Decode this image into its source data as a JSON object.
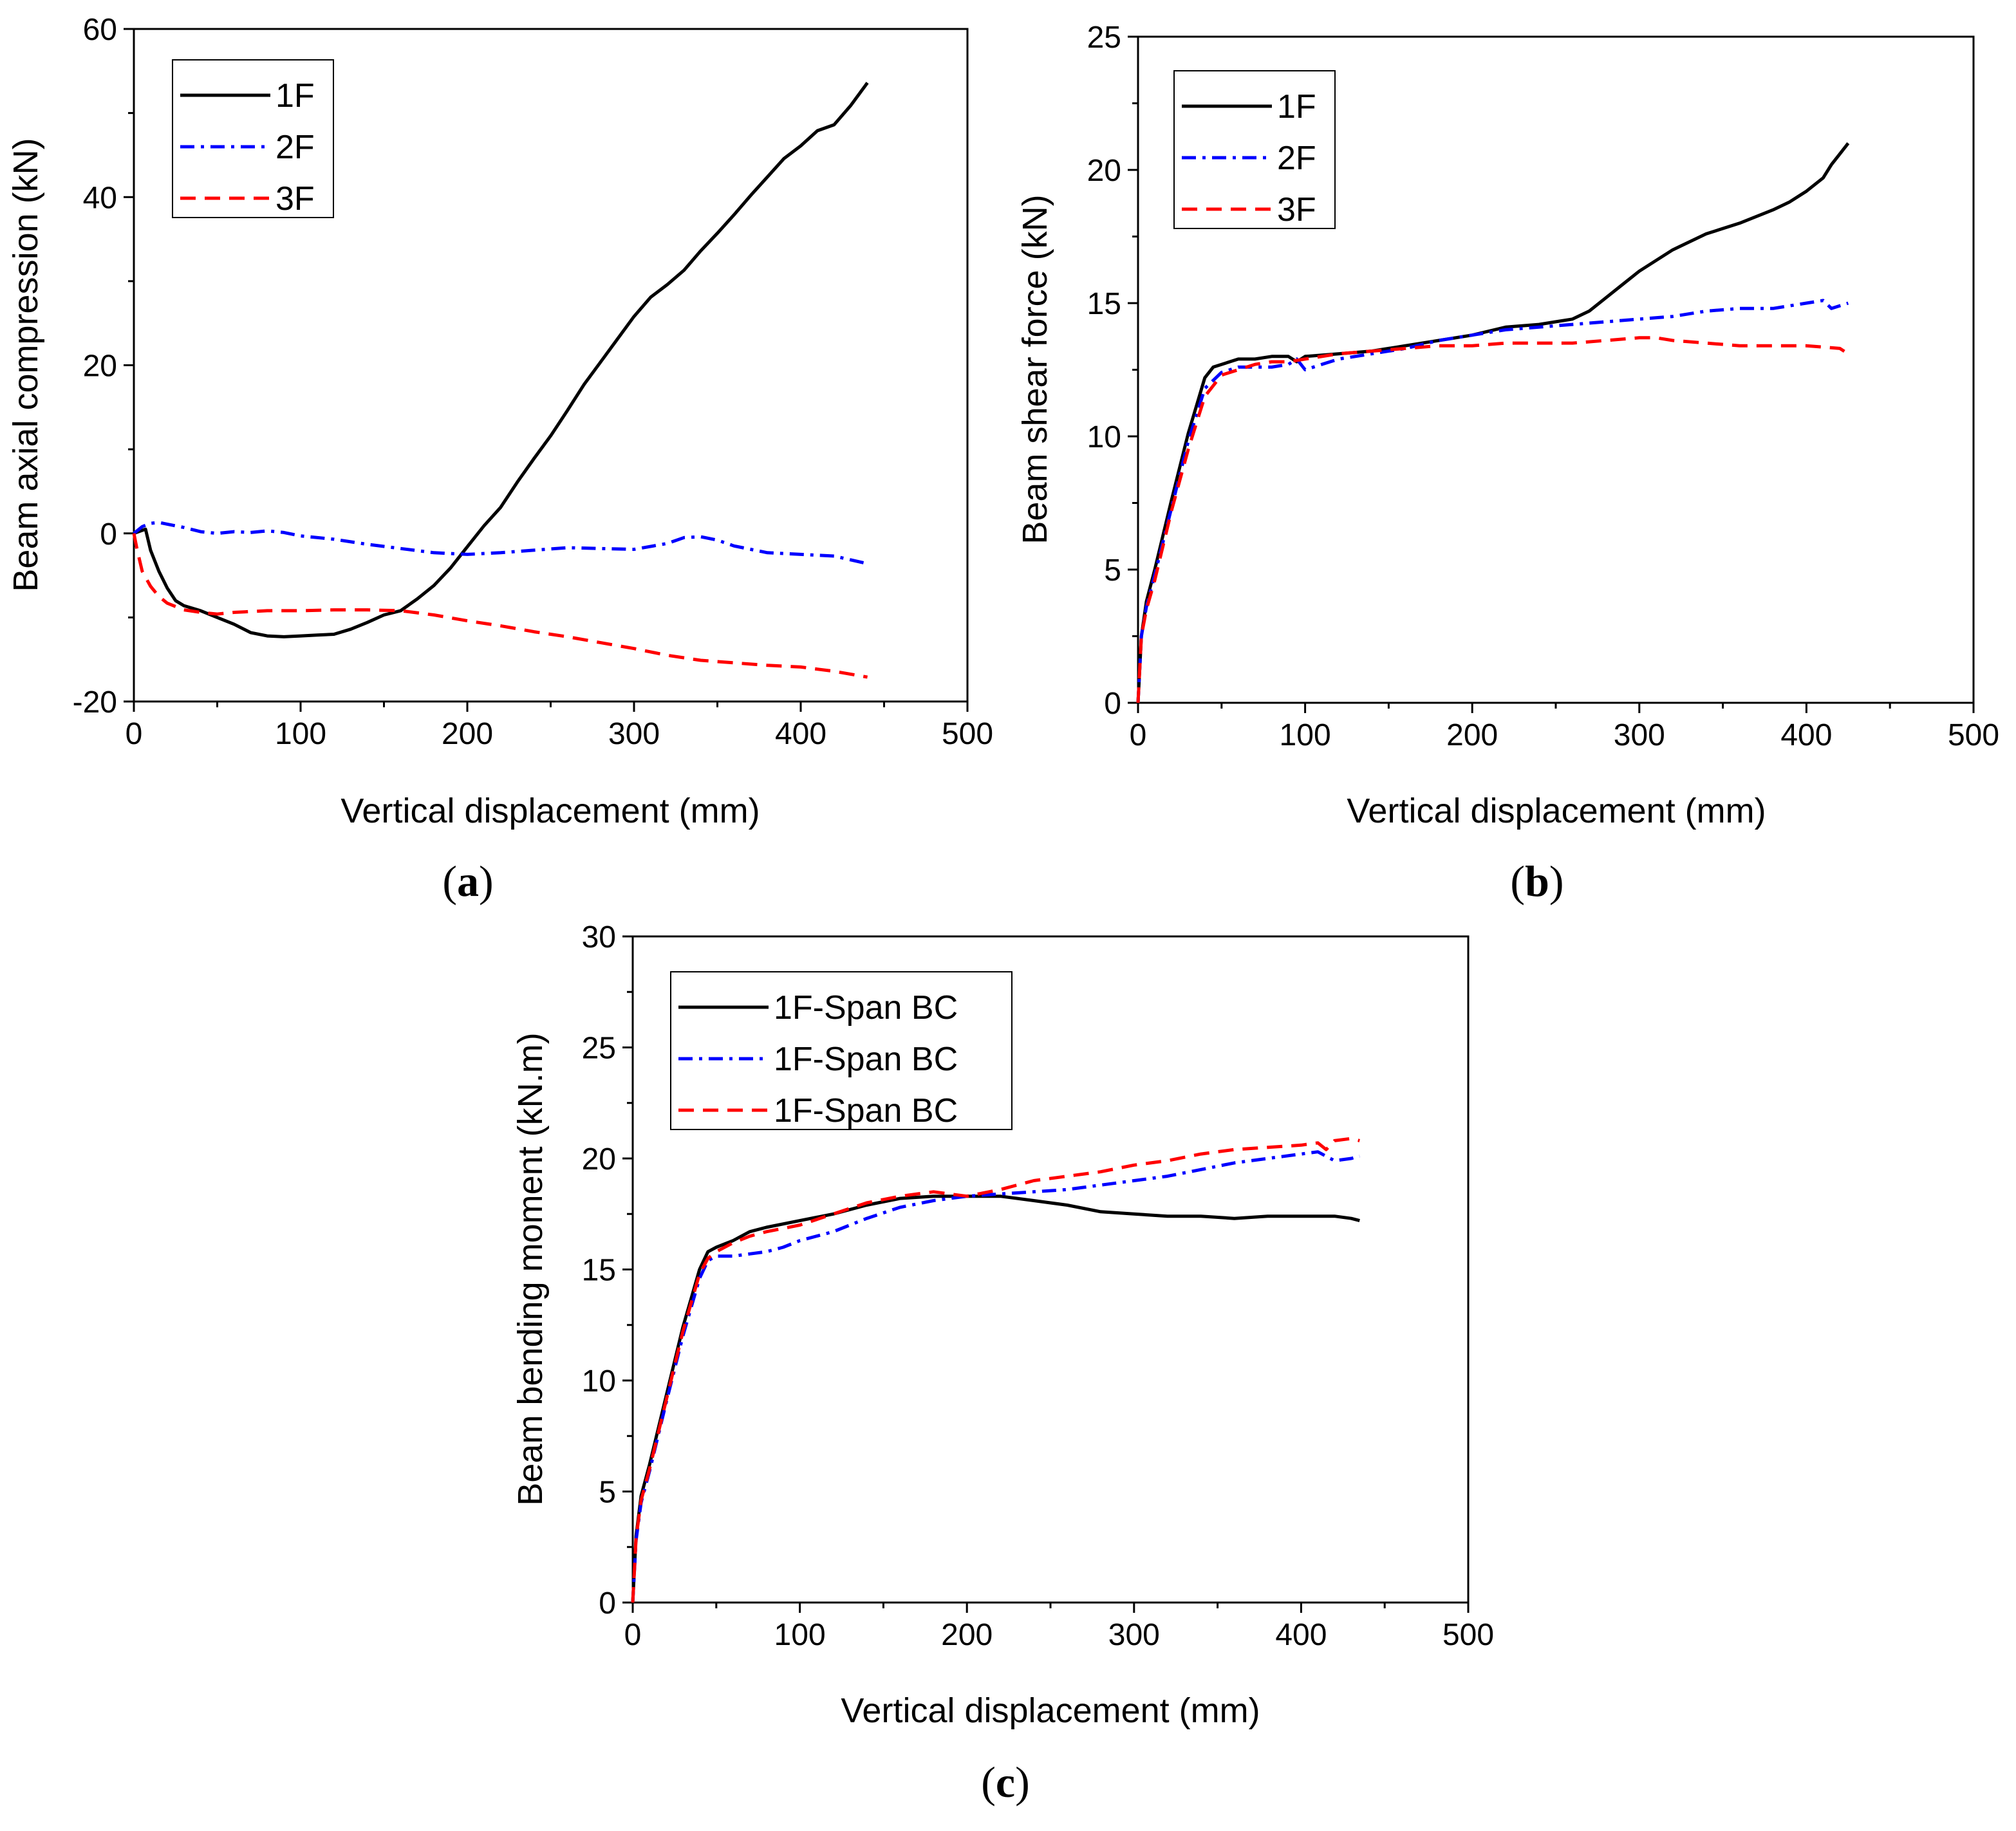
{
  "chart_data": [
    {
      "id": "a",
      "type": "line",
      "panel_label": "a",
      "xlabel": "Vertical displacement (mm)",
      "ylabel": "Beam axial compression (kN)",
      "xlim": [
        0,
        500
      ],
      "ylim": [
        -20,
        60
      ],
      "xticks": [
        0,
        100,
        200,
        300,
        400,
        500
      ],
      "yticks": [
        -20,
        0,
        20,
        40,
        60
      ],
      "legend_position": "top-left",
      "series": [
        {
          "name": "1F",
          "color": "#000000",
          "style": "solid",
          "x": [
            0,
            7,
            10,
            15,
            20,
            25,
            30,
            40,
            50,
            60,
            70,
            80,
            90,
            100,
            110,
            120,
            130,
            140,
            150,
            160,
            170,
            180,
            190,
            200,
            210,
            220,
            230,
            240,
            250,
            260,
            270,
            280,
            290,
            300,
            310,
            320,
            330,
            340,
            350,
            360,
            370,
            380,
            390,
            400,
            410,
            420,
            430,
            440
          ],
          "y": [
            0,
            0.5,
            -2,
            -4.5,
            -6.5,
            -8,
            -8.6,
            -9.2,
            -10,
            -10.8,
            -11.8,
            -12.2,
            -12.3,
            -12.2,
            -12.1,
            -12,
            -11.4,
            -10.6,
            -9.7,
            -9.2,
            -7.8,
            -6.2,
            -4.1,
            -1.6,
            0.9,
            3.1,
            6.1,
            8.9,
            11.6,
            14.6,
            17.7,
            20.4,
            23.1,
            25.8,
            28.1,
            29.6,
            31.3,
            33.6,
            35.7,
            37.9,
            40.2,
            42.4,
            44.6,
            46.1,
            47.9,
            48.6,
            50.9,
            53.6
          ]
        },
        {
          "name": "2F",
          "color": "#0000ff",
          "style": "dash-dot",
          "x": [
            0,
            5,
            10,
            15,
            20,
            30,
            40,
            50,
            60,
            70,
            80,
            90,
            100,
            120,
            140,
            160,
            180,
            200,
            220,
            240,
            260,
            280,
            300,
            320,
            330,
            340,
            350,
            360,
            380,
            400,
            420,
            440
          ],
          "y": [
            0,
            0.8,
            1.2,
            1.3,
            1.1,
            0.7,
            0.2,
            0,
            0.2,
            0.1,
            0.3,
            0.1,
            -0.3,
            -0.7,
            -1.3,
            -1.8,
            -2.3,
            -2.5,
            -2.3,
            -2,
            -1.7,
            -1.8,
            -1.9,
            -1.2,
            -0.5,
            -0.4,
            -0.8,
            -1.5,
            -2.3,
            -2.5,
            -2.7,
            -3.6
          ]
        },
        {
          "name": "3F",
          "color": "#ff0000",
          "style": "dashed",
          "x": [
            0,
            2,
            5,
            10,
            15,
            20,
            30,
            40,
            50,
            60,
            80,
            100,
            120,
            140,
            160,
            180,
            200,
            220,
            240,
            260,
            280,
            300,
            320,
            340,
            360,
            380,
            400,
            420,
            440
          ],
          "y": [
            0,
            -2,
            -4.5,
            -6.3,
            -7.5,
            -8.3,
            -9.1,
            -9.4,
            -9.6,
            -9.4,
            -9.2,
            -9.2,
            -9.1,
            -9.1,
            -9.2,
            -9.7,
            -10.4,
            -11,
            -11.7,
            -12.3,
            -13,
            -13.7,
            -14.5,
            -15.1,
            -15.4,
            -15.7,
            -15.9,
            -16.4,
            -17.1
          ]
        }
      ]
    },
    {
      "id": "b",
      "type": "line",
      "panel_label": "b",
      "xlabel": "Vertical displacement (mm)",
      "ylabel": "Beam shear force (kN)",
      "xlim": [
        0,
        500
      ],
      "ylim": [
        0,
        25
      ],
      "xticks": [
        0,
        100,
        200,
        300,
        400,
        500
      ],
      "yticks": [
        0,
        5,
        10,
        15,
        20,
        25
      ],
      "legend_position": "top-left",
      "series": [
        {
          "name": "1F",
          "color": "#000000",
          "style": "solid",
          "x": [
            0,
            2,
            5,
            10,
            20,
            30,
            40,
            45,
            50,
            60,
            70,
            80,
            90,
            95,
            100,
            120,
            140,
            160,
            180,
            200,
            220,
            240,
            260,
            270,
            280,
            290,
            300,
            320,
            340,
            360,
            380,
            390,
            400,
            410,
            415,
            420,
            425
          ],
          "y": [
            0,
            2.5,
            3.8,
            5,
            7.6,
            10.1,
            12.2,
            12.6,
            12.7,
            12.9,
            12.9,
            13,
            13,
            12.8,
            13,
            13.1,
            13.2,
            13.4,
            13.6,
            13.8,
            14.1,
            14.2,
            14.4,
            14.7,
            15.2,
            15.7,
            16.2,
            17,
            17.6,
            18,
            18.5,
            18.8,
            19.2,
            19.7,
            20.2,
            20.6,
            21
          ]
        },
        {
          "name": "2F",
          "color": "#0000ff",
          "style": "dash-dot",
          "x": [
            0,
            2,
            5,
            10,
            20,
            30,
            40,
            50,
            60,
            70,
            80,
            90,
            95,
            100,
            120,
            140,
            160,
            180,
            200,
            220,
            240,
            260,
            280,
            300,
            320,
            340,
            360,
            380,
            400,
            410,
            415,
            420,
            425
          ],
          "y": [
            0,
            2.5,
            3.6,
            4.8,
            7.3,
            9.8,
            11.8,
            12.4,
            12.6,
            12.6,
            12.6,
            12.7,
            12.9,
            12.5,
            12.9,
            13.1,
            13.3,
            13.6,
            13.8,
            14,
            14.1,
            14.2,
            14.3,
            14.4,
            14.5,
            14.7,
            14.8,
            14.8,
            15,
            15.1,
            14.8,
            14.9,
            15
          ]
        },
        {
          "name": "3F",
          "color": "#ff0000",
          "style": "dashed",
          "x": [
            0,
            2,
            5,
            10,
            20,
            30,
            40,
            50,
            60,
            70,
            80,
            90,
            100,
            120,
            140,
            160,
            180,
            200,
            220,
            240,
            260,
            280,
            300,
            310,
            320,
            340,
            360,
            380,
            400,
            420,
            425
          ],
          "y": [
            0,
            2.5,
            3.5,
            4.6,
            7.2,
            9.5,
            11.5,
            12.3,
            12.5,
            12.7,
            12.8,
            12.8,
            12.9,
            13.1,
            13.2,
            13.3,
            13.4,
            13.4,
            13.5,
            13.5,
            13.5,
            13.6,
            13.7,
            13.7,
            13.6,
            13.5,
            13.4,
            13.4,
            13.4,
            13.3,
            13.1
          ]
        }
      ]
    },
    {
      "id": "c",
      "type": "line",
      "panel_label": "c",
      "xlabel": "Vertical displacement (mm)",
      "ylabel": "Beam bending moment (kN.m)",
      "xlim": [
        0,
        500
      ],
      "ylim": [
        0,
        30
      ],
      "xticks": [
        0,
        100,
        200,
        300,
        400,
        500
      ],
      "yticks": [
        0,
        5,
        10,
        15,
        20,
        25,
        30
      ],
      "legend_position": "top-left",
      "series": [
        {
          "name": "1F-Span BC",
          "color": "#000000",
          "style": "solid",
          "x": [
            0,
            2,
            5,
            10,
            20,
            30,
            40,
            45,
            50,
            60,
            70,
            80,
            100,
            120,
            140,
            160,
            180,
            200,
            220,
            240,
            260,
            280,
            300,
            320,
            340,
            360,
            380,
            400,
            420,
            430,
            435
          ],
          "y": [
            0,
            3,
            4.8,
            6.2,
            9.3,
            12.4,
            15,
            15.8,
            16,
            16.3,
            16.7,
            16.9,
            17.2,
            17.5,
            17.9,
            18.2,
            18.3,
            18.3,
            18.3,
            18.1,
            17.9,
            17.6,
            17.5,
            17.4,
            17.4,
            17.3,
            17.4,
            17.4,
            17.4,
            17.3,
            17.2
          ]
        },
        {
          "name": "1F-Span BC",
          "color": "#0000ff",
          "style": "dash-dot",
          "x": [
            0,
            2,
            5,
            10,
            20,
            30,
            40,
            45,
            50,
            60,
            70,
            80,
            90,
            100,
            120,
            140,
            160,
            180,
            200,
            220,
            240,
            260,
            280,
            300,
            320,
            340,
            360,
            380,
            400,
            410,
            420,
            430,
            435
          ],
          "y": [
            0,
            2.8,
            4.5,
            5.9,
            9,
            12,
            14.6,
            15.4,
            15.6,
            15.6,
            15.7,
            15.8,
            16,
            16.3,
            16.7,
            17.3,
            17.8,
            18.1,
            18.3,
            18.4,
            18.5,
            18.6,
            18.8,
            19,
            19.2,
            19.5,
            19.8,
            20,
            20.2,
            20.3,
            19.9,
            20,
            20.1
          ]
        },
        {
          "name": "1F-Span BC",
          "color": "#ff0000",
          "style": "dashed",
          "x": [
            0,
            2,
            5,
            10,
            20,
            30,
            40,
            45,
            50,
            60,
            70,
            80,
            100,
            120,
            140,
            160,
            180,
            200,
            220,
            240,
            260,
            280,
            300,
            320,
            340,
            360,
            380,
            400,
            410,
            415,
            420,
            430,
            435
          ],
          "y": [
            0,
            2.9,
            4.6,
            6,
            9.1,
            12.2,
            14.8,
            15.5,
            15.8,
            16.2,
            16.5,
            16.7,
            17,
            17.5,
            18,
            18.3,
            18.5,
            18.3,
            18.6,
            19,
            19.2,
            19.4,
            19.7,
            19.9,
            20.2,
            20.4,
            20.5,
            20.6,
            20.7,
            20.4,
            20.8,
            20.9,
            20.8
          ]
        }
      ]
    }
  ]
}
